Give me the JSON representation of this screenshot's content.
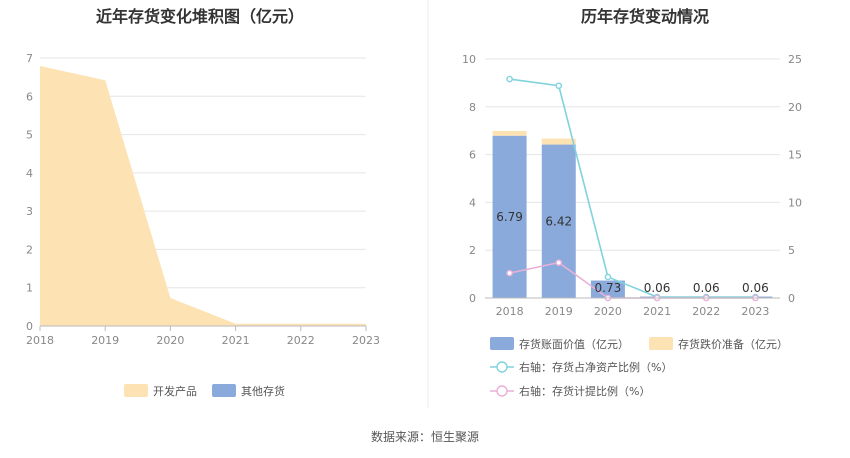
{
  "source_label": "数据来源：恒生聚源",
  "chart_data": [
    {
      "type": "area",
      "title": "近年存货变化堆积图（亿元）",
      "x": [
        "2018",
        "2019",
        "2020",
        "2021",
        "2022",
        "2023"
      ],
      "ylim": [
        0,
        7
      ],
      "yticks": [
        "0",
        "1",
        "2",
        "3",
        "4",
        "5",
        "6",
        "7"
      ],
      "grid": true,
      "legend_placement": "bottom",
      "series": [
        {
          "name": "开发产品",
          "color": "#fde2b3",
          "values": [
            6.79,
            6.42,
            0.73,
            0.06,
            0.06,
            0.06
          ]
        },
        {
          "name": "其他存货",
          "color": "#8aaadc",
          "values": [
            0,
            0,
            0,
            0,
            0,
            0
          ]
        }
      ]
    },
    {
      "type": "bar",
      "title": "历年存货变动情况",
      "categories": [
        "2018",
        "2019",
        "2020",
        "2021",
        "2022",
        "2023"
      ],
      "ylim": [
        0,
        10
      ],
      "yticks": [
        "0",
        "2",
        "4",
        "6",
        "8",
        "10"
      ],
      "y2lim": [
        0,
        25
      ],
      "y2ticks": [
        "0",
        "5",
        "10",
        "15",
        "20",
        "25"
      ],
      "grid": true,
      "legend_placement": "bottom",
      "series": [
        {
          "name": "存货账面价值（亿元）",
          "kind": "bar",
          "color": "#8aaadc",
          "values": [
            6.79,
            6.42,
            0.73,
            0.06,
            0.06,
            0.06
          ],
          "labels": [
            "6.79",
            "6.42",
            "0.73",
            "0.06",
            "0.06",
            "0.06"
          ]
        },
        {
          "name": "存货跌价准备（亿元）",
          "kind": "bar",
          "color": "#fde2b3",
          "values": [
            0.2,
            0.25,
            0.0,
            0.0,
            0.0,
            0.0
          ]
        },
        {
          "name": "右轴：存货占净资产比例（%）",
          "kind": "line",
          "axis": "right",
          "color": "#7fd3dc",
          "values": [
            22.9,
            22.2,
            2.2,
            0.1,
            0.1,
            0.1
          ]
        },
        {
          "name": "右轴：存货计提比例（%）",
          "kind": "line",
          "axis": "right",
          "color": "#e8b0d8",
          "values": [
            2.6,
            3.7,
            0.0,
            0.0,
            0.0,
            0.0
          ]
        }
      ]
    }
  ]
}
